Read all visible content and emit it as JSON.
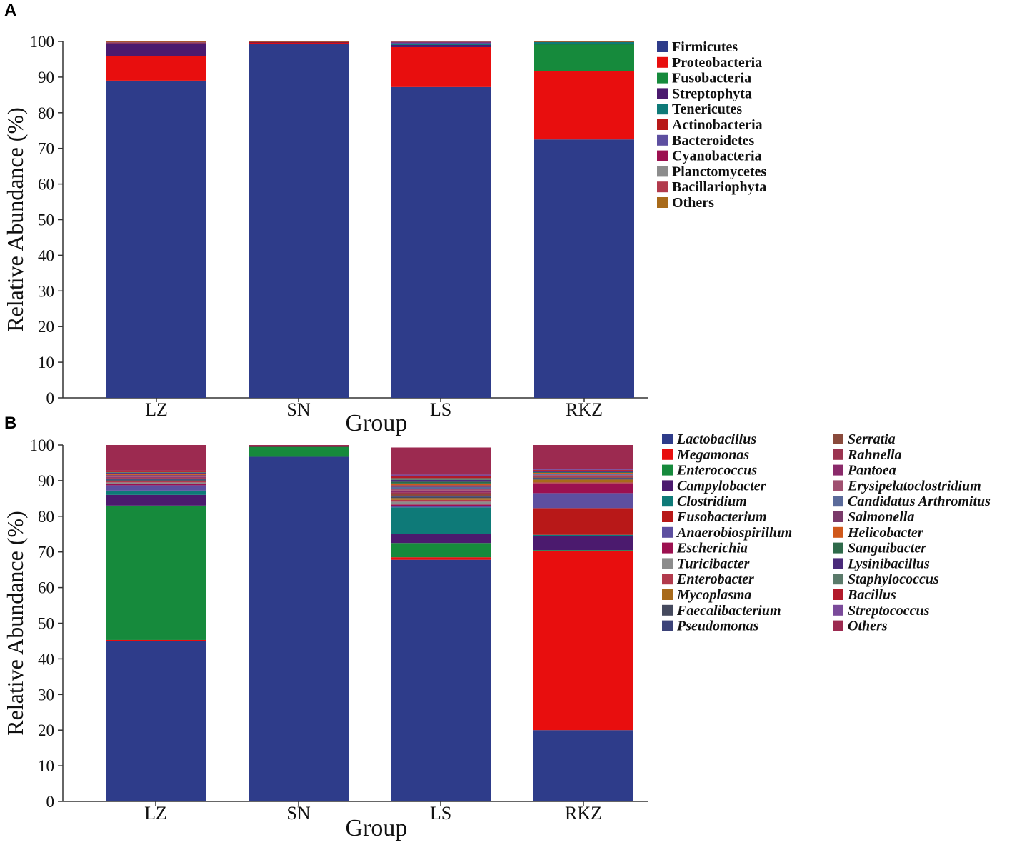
{
  "chart_data": [
    {
      "type": "bar",
      "stacked": true,
      "panel": "A",
      "xlabel": "Group",
      "ylabel": "Relative Abundance (%)",
      "ylim": [
        0,
        100
      ],
      "yticks": [
        0,
        10,
        20,
        30,
        40,
        50,
        60,
        70,
        80,
        90,
        100
      ],
      "categories": [
        "LZ",
        "SN",
        "LS",
        "RKZ"
      ],
      "legend_italic": false,
      "legend_columns": 1,
      "series": [
        {
          "name": "Firmicutes",
          "color": "#2e3c8a",
          "values": [
            89.0,
            99.3,
            87.2,
            72.5
          ]
        },
        {
          "name": "Proteobacteria",
          "color": "#e80e0e",
          "values": [
            6.8,
            0.3,
            11.2,
            19.2
          ]
        },
        {
          "name": "Fusobacteria",
          "color": "#168a3c",
          "values": [
            0.0,
            0.0,
            0.0,
            7.5
          ]
        },
        {
          "name": "Streptophyta",
          "color": "#4b1a6e",
          "values": [
            3.5,
            0.1,
            0.6,
            0.1
          ]
        },
        {
          "name": "Tenericutes",
          "color": "#0e7a78",
          "values": [
            0.1,
            0.0,
            0.3,
            0.6
          ]
        },
        {
          "name": "Actinobacteria",
          "color": "#b81818",
          "values": [
            0.1,
            0.1,
            0.1,
            0.0
          ]
        },
        {
          "name": "Bacteroidetes",
          "color": "#5d4fa0",
          "values": [
            0.1,
            0.0,
            0.3,
            0.0
          ]
        },
        {
          "name": "Cyanobacteria",
          "color": "#9c1050",
          "values": [
            0.1,
            0.1,
            0.1,
            0.0
          ]
        },
        {
          "name": "Planctomycetes",
          "color": "#8c8c8c",
          "values": [
            0.1,
            0.0,
            0.1,
            0.0
          ]
        },
        {
          "name": "Bacillariophyta",
          "color": "#b23a4c",
          "values": [
            0.1,
            0.05,
            0.1,
            0.05
          ]
        },
        {
          "name": "Others",
          "color": "#a86a1a",
          "values": [
            0.3,
            0.05,
            0.0,
            0.05
          ]
        }
      ]
    },
    {
      "type": "bar",
      "stacked": true,
      "panel": "B",
      "xlabel": "Group",
      "ylabel": "Relative Abundance (%)",
      "ylim": [
        0,
        100
      ],
      "yticks": [
        0,
        10,
        20,
        30,
        40,
        50,
        60,
        70,
        80,
        90,
        100
      ],
      "categories": [
        "LZ",
        "SN",
        "LS",
        "RKZ"
      ],
      "legend_italic": true,
      "legend_columns": 2,
      "series": [
        {
          "name": "Lactobacillus",
          "color": "#2e3c8a",
          "values": [
            45.0,
            96.7,
            67.8,
            20.0
          ]
        },
        {
          "name": "Megamonas",
          "color": "#e80e0e",
          "values": [
            0.3,
            0.0,
            0.7,
            50.2
          ]
        },
        {
          "name": "Enterococcus",
          "color": "#168a3c",
          "values": [
            37.7,
            2.8,
            4.0,
            0.3
          ]
        },
        {
          "name": "Campylobacter",
          "color": "#4b1a6e",
          "values": [
            3.0,
            0.0,
            2.5,
            4.0
          ]
        },
        {
          "name": "Clostridium",
          "color": "#0e7a78",
          "values": [
            1.2,
            0.0,
            7.5,
            0.3
          ]
        },
        {
          "name": "Fusobacterium",
          "color": "#b81818",
          "values": [
            0.0,
            0.0,
            0.0,
            7.5
          ]
        },
        {
          "name": "Anaerobiospirillum",
          "color": "#5d4fa0",
          "values": [
            1.5,
            0.0,
            0.3,
            4.2
          ]
        },
        {
          "name": "Escherichia",
          "color": "#9c1050",
          "values": [
            0.3,
            0.1,
            0.5,
            2.5
          ]
        },
        {
          "name": "Turicibacter",
          "color": "#8c8c8c",
          "values": [
            0.5,
            0.0,
            0.8,
            0.2
          ]
        },
        {
          "name": "Enterobacter",
          "color": "#b23a4c",
          "values": [
            0.3,
            0.0,
            0.5,
            0.3
          ]
        },
        {
          "name": "Mycoplasma",
          "color": "#a86a1a",
          "values": [
            0.2,
            0.0,
            0.5,
            0.8
          ]
        },
        {
          "name": "Faecalibacterium",
          "color": "#454a5e",
          "values": [
            0.2,
            0.0,
            0.3,
            0.3
          ]
        },
        {
          "name": "Pseudomonas",
          "color": "#3b4278",
          "values": [
            0.2,
            0.0,
            0.3,
            0.2
          ]
        },
        {
          "name": "Serratia",
          "color": "#8a4a3c",
          "values": [
            0.2,
            0.0,
            0.5,
            0.2
          ]
        },
        {
          "name": "Rahnella",
          "color": "#9c3450",
          "values": [
            0.2,
            0.0,
            0.5,
            0.2
          ]
        },
        {
          "name": "Pantoea",
          "color": "#8a2a6a",
          "values": [
            0.2,
            0.0,
            0.5,
            0.2
          ]
        },
        {
          "name": "Erysipelatoclostridium",
          "color": "#a05070",
          "values": [
            0.2,
            0.0,
            0.5,
            0.2
          ]
        },
        {
          "name": "Candidatus Arthromitus",
          "color": "#5a6a9a",
          "values": [
            0.2,
            0.0,
            0.5,
            0.2
          ]
        },
        {
          "name": "Salmonella",
          "color": "#7a3a6a",
          "values": [
            0.2,
            0.0,
            0.5,
            0.2
          ]
        },
        {
          "name": "Helicobacter",
          "color": "#d0581a",
          "values": [
            0.2,
            0.0,
            0.5,
            0.2
          ]
        },
        {
          "name": "Sanguibacter",
          "color": "#2e6a4a",
          "values": [
            0.2,
            0.0,
            0.5,
            0.2
          ]
        },
        {
          "name": "Lysinibacillus",
          "color": "#4a2a7a",
          "values": [
            0.2,
            0.0,
            0.5,
            0.2
          ]
        },
        {
          "name": "Staphylococcus",
          "color": "#5a7a6a",
          "values": [
            0.2,
            0.0,
            0.5,
            0.2
          ]
        },
        {
          "name": "Bacillus",
          "color": "#b21a2a",
          "values": [
            0.2,
            0.0,
            0.5,
            0.2
          ]
        },
        {
          "name": "Streptococcus",
          "color": "#7a4a9a",
          "values": [
            0.2,
            0.0,
            0.5,
            0.2
          ]
        },
        {
          "name": "Others",
          "color": "#9c2a50",
          "values": [
            7.9,
            0.4,
            7.6,
            7.8
          ]
        }
      ]
    }
  ]
}
